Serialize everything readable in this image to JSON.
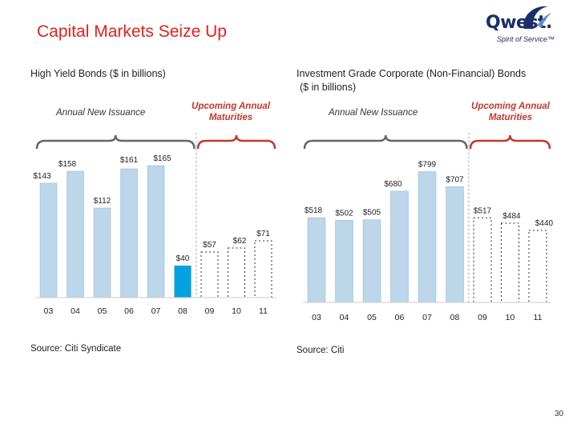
{
  "title": "Capital Markets Seize Up",
  "logo": {
    "wordmark": "Qwest.",
    "tagline": "Spirit of Service™"
  },
  "colors": {
    "title": "#e2211c",
    "bar": "#bcd6ea",
    "bar_current": "#00a3e0",
    "bracket_issuance": "#666666",
    "bracket_maturities": "#c0392b"
  },
  "left_panel": {
    "subtitle": "High Yield Bonds ($ in billions)",
    "issuance_label": "Annual New Issuance",
    "maturities_label": "Upcoming Annual Maturities",
    "source": "Source: Citi Syndicate"
  },
  "right_panel": {
    "subtitle_line1": "Investment Grade Corporate (Non-Financial) Bonds",
    "subtitle_line2": "($ in billions)",
    "issuance_label": "Annual New Issuance",
    "maturities_label": "Upcoming Annual Maturities",
    "source": "Source: Citi"
  },
  "page_number": "30",
  "chart_data": [
    {
      "type": "bar",
      "title": "High Yield Bonds ($ in billions)",
      "categories": [
        "03",
        "04",
        "05",
        "06",
        "07",
        "08",
        "09",
        "10",
        "11"
      ],
      "values": [
        143,
        158,
        112,
        161,
        165,
        40,
        57,
        62,
        71
      ],
      "labels": [
        "$143",
        "$158",
        "$112",
        "$161",
        "$165",
        "$40",
        "$57",
        "$62",
        "$71"
      ],
      "bar_kind": [
        "issuance",
        "issuance",
        "issuance",
        "issuance",
        "issuance",
        "current",
        "maturity",
        "maturity",
        "maturity"
      ],
      "ylim": [
        0,
        190
      ]
    },
    {
      "type": "bar",
      "title": "Investment Grade Corporate (Non-Financial) Bonds ($ in billions)",
      "categories": [
        "03",
        "04",
        "05",
        "06",
        "07",
        "08",
        "09",
        "10",
        "11"
      ],
      "values": [
        518,
        502,
        505,
        680,
        799,
        707,
        517,
        484,
        440
      ],
      "labels": [
        "$518",
        "$502",
        "$505",
        "$680",
        "$799",
        "$707",
        "$517",
        "$484",
        "$440"
      ],
      "bar_kind": [
        "issuance",
        "issuance",
        "issuance",
        "issuance",
        "issuance",
        "issuance",
        "maturity",
        "maturity",
        "maturity"
      ],
      "ylim": [
        0,
        880
      ]
    }
  ]
}
